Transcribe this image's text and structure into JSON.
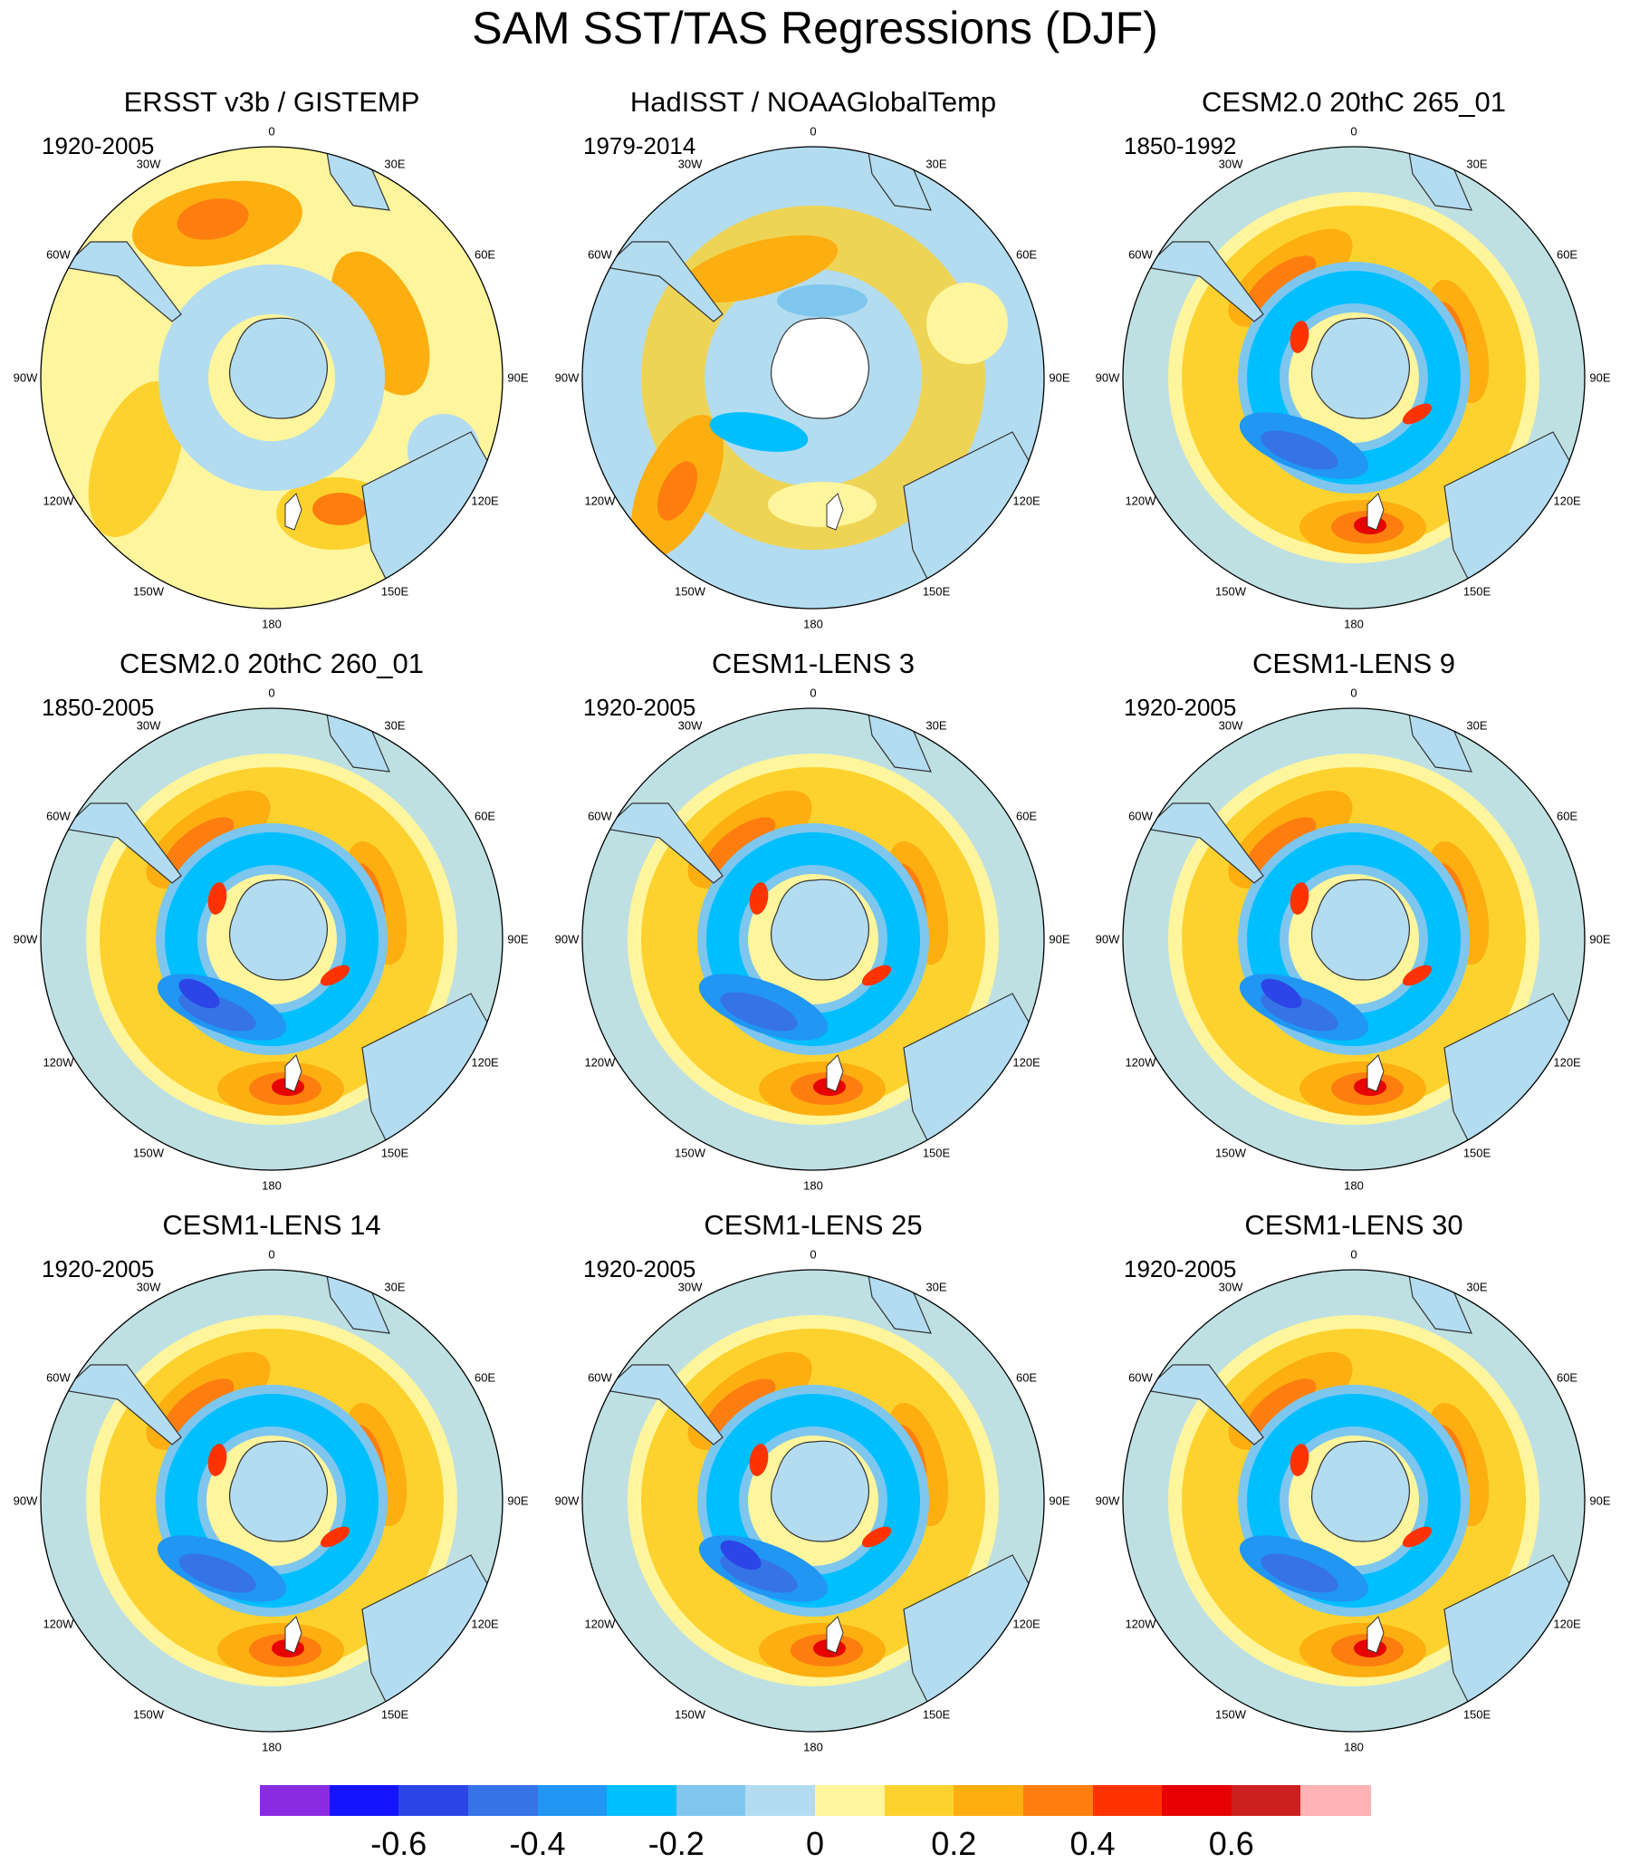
{
  "title": "SAM SST/TAS Regressions (DJF)",
  "longitude_labels": [
    "0",
    "30E",
    "60E",
    "90E",
    "120E",
    "150E",
    "180",
    "150W",
    "120W",
    "90W",
    "60W",
    "30W"
  ],
  "panels": [
    {
      "title": "ERSST v3b / GISTEMP",
      "period": "1920-2005",
      "pattern": "obs1"
    },
    {
      "title": "HadISST / NOAAGlobalTemp",
      "period": "1979-2014",
      "pattern": "obs2"
    },
    {
      "title": "CESM2.0 20thC 265_01",
      "period": "1850-1992",
      "pattern": "model"
    },
    {
      "title": "CESM2.0 20thC 260_01",
      "period": "1850-2005",
      "pattern": "model"
    },
    {
      "title": "CESM1-LENS 3",
      "period": "1920-2005",
      "pattern": "model"
    },
    {
      "title": "CESM1-LENS 9",
      "period": "1920-2005",
      "pattern": "model"
    },
    {
      "title": "CESM1-LENS 14",
      "period": "1920-2005",
      "pattern": "model"
    },
    {
      "title": "CESM1-LENS 25",
      "period": "1920-2005",
      "pattern": "model"
    },
    {
      "title": "CESM1-LENS 30",
      "period": "1920-2005",
      "pattern": "model"
    }
  ],
  "colorbar": {
    "colors": [
      "#8a2be2",
      "#1414ff",
      "#2c45e6",
      "#3573e6",
      "#2196f3",
      "#00bfff",
      "#7ec6ee",
      "#b3dcf0",
      "#fff59d",
      "#fdd22e",
      "#fdae10",
      "#fd7e0f",
      "#ff3300",
      "#e60000",
      "#cc1f1f",
      "#ffb3b3"
    ],
    "tick_labels": [
      "-0.6",
      "-0.4",
      "-0.2",
      "0",
      "0.2",
      "0.4",
      "0.6"
    ],
    "tick_values": [
      -0.6,
      -0.4,
      -0.2,
      0,
      0.2,
      0.4,
      0.6
    ],
    "levels": [
      -0.7,
      -0.6,
      -0.5,
      -0.4,
      -0.3,
      -0.2,
      -0.1,
      0,
      0.1,
      0.2,
      0.3,
      0.4,
      0.5,
      0.6,
      0.7
    ]
  },
  "colors": {
    "land": "#b3dcf0",
    "coast": "#333333",
    "background": "#ffffff"
  }
}
